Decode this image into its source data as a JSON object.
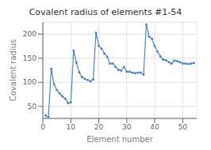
{
  "chart_data": {
    "type": "line",
    "title": "Covalent radius of elements #1-54",
    "xlabel": "Element number",
    "ylabel": "Covalent radius",
    "x": [
      1,
      2,
      3,
      4,
      5,
      6,
      7,
      8,
      9,
      10,
      11,
      12,
      13,
      14,
      15,
      16,
      17,
      18,
      19,
      20,
      21,
      22,
      23,
      24,
      25,
      26,
      27,
      28,
      29,
      30,
      31,
      32,
      33,
      34,
      35,
      36,
      37,
      38,
      39,
      40,
      41,
      42,
      43,
      44,
      45,
      46,
      47,
      48,
      49,
      50,
      51,
      52,
      53,
      54
    ],
    "values": [
      31,
      28,
      128,
      96,
      84,
      77,
      71,
      66,
      57,
      58,
      166,
      141,
      121,
      111,
      107,
      105,
      102,
      106,
      203,
      176,
      170,
      160,
      153,
      139,
      139,
      132,
      126,
      124,
      132,
      122,
      122,
      120,
      119,
      120,
      120,
      116,
      220,
      195,
      190,
      175,
      164,
      154,
      147,
      146,
      142,
      139,
      145,
      144,
      142,
      139,
      139,
      138,
      139,
      140
    ],
    "color": "#4a86c8",
    "marker": "o",
    "grid": true,
    "xlim": [
      0,
      55
    ],
    "ylim": [
      25,
      225
    ],
    "xticks": [
      0,
      10,
      20,
      30,
      40,
      50
    ],
    "yticks": [
      50,
      100,
      150,
      200
    ]
  }
}
